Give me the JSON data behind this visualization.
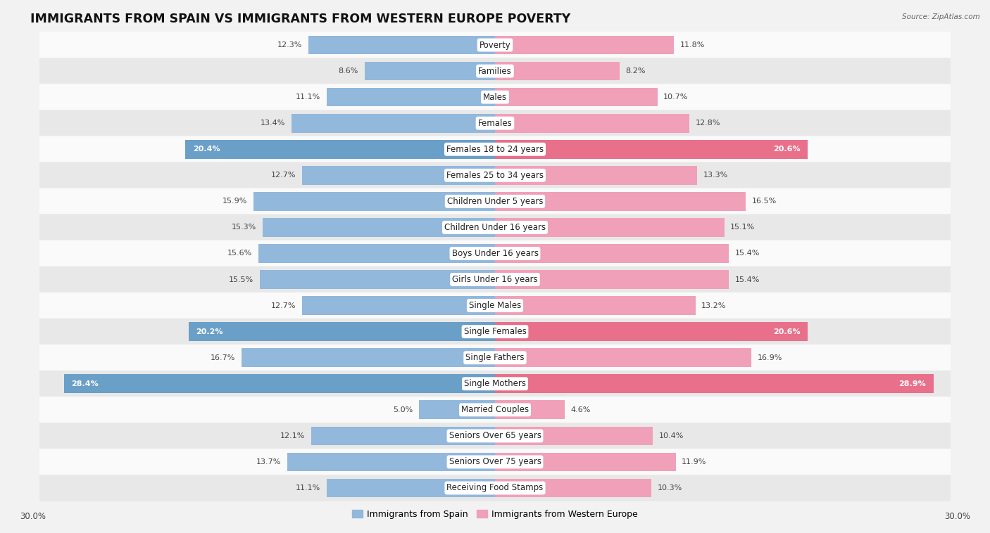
{
  "title": "IMMIGRANTS FROM SPAIN VS IMMIGRANTS FROM WESTERN EUROPE POVERTY",
  "source": "Source: ZipAtlas.com",
  "categories": [
    "Poverty",
    "Families",
    "Males",
    "Females",
    "Females 18 to 24 years",
    "Females 25 to 34 years",
    "Children Under 5 years",
    "Children Under 16 years",
    "Boys Under 16 years",
    "Girls Under 16 years",
    "Single Males",
    "Single Females",
    "Single Fathers",
    "Single Mothers",
    "Married Couples",
    "Seniors Over 65 years",
    "Seniors Over 75 years",
    "Receiving Food Stamps"
  ],
  "spain_values": [
    12.3,
    8.6,
    11.1,
    13.4,
    20.4,
    12.7,
    15.9,
    15.3,
    15.6,
    15.5,
    12.7,
    20.2,
    16.7,
    28.4,
    5.0,
    12.1,
    13.7,
    11.1
  ],
  "western_europe_values": [
    11.8,
    8.2,
    10.7,
    12.8,
    20.6,
    13.3,
    16.5,
    15.1,
    15.4,
    15.4,
    13.2,
    20.6,
    16.9,
    28.9,
    4.6,
    10.4,
    11.9,
    10.3
  ],
  "spain_color": "#92b8dc",
  "western_europe_color": "#f0a0b8",
  "highlight_spain_color": "#6a9fc8",
  "highlight_western_color": "#e8708a",
  "background_color": "#f2f2f2",
  "row_light_color": "#fafafa",
  "row_dark_color": "#e8e8e8",
  "highlight_row_color": "#dde8f0",
  "xlim": 30.0,
  "bar_height": 0.72,
  "legend_spain": "Immigrants from Spain",
  "legend_western": "Immigrants from Western Europe",
  "title_fontsize": 12.5,
  "label_fontsize": 8.5,
  "value_fontsize": 8.0,
  "axis_fontsize": 8.5,
  "highlight_rows": [
    4,
    11,
    13
  ]
}
